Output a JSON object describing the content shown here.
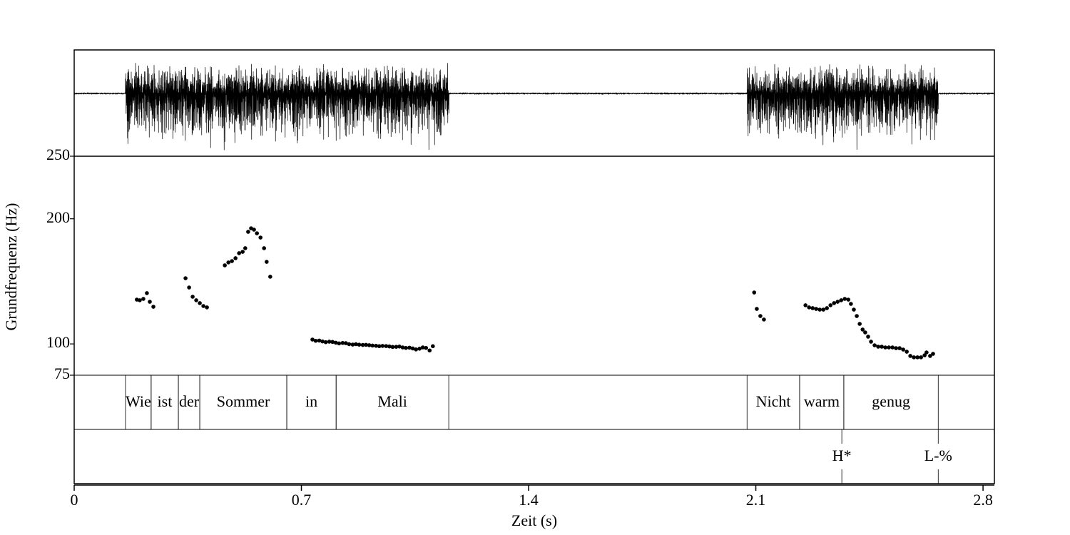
{
  "chart_data": {
    "type": "scatter",
    "x_label": "Zeit (s)",
    "y_label": "Grundfrequenz (Hz)",
    "xlim": [
      0,
      2.835
    ],
    "xticks": [
      0,
      0.7,
      1.4,
      2.1,
      2.8
    ],
    "ylim": [
      75,
      250
    ],
    "yticks": [
      75,
      100,
      200,
      250
    ],
    "color": "#000000",
    "x": [
      0.193,
      0.202,
      0.213,
      0.224,
      0.233,
      0.244,
      0.343,
      0.354,
      0.365,
      0.376,
      0.387,
      0.398,
      0.409,
      0.464,
      0.475,
      0.486,
      0.497,
      0.508,
      0.519,
      0.527,
      0.536,
      0.545,
      0.554,
      0.563,
      0.574,
      0.585,
      0.593,
      0.604,
      0.734,
      0.744,
      0.755,
      0.765,
      0.775,
      0.786,
      0.796,
      0.806,
      0.816,
      0.827,
      0.837,
      0.847,
      0.858,
      0.868,
      0.878,
      0.889,
      0.899,
      0.909,
      0.919,
      0.93,
      0.94,
      0.95,
      0.961,
      0.971,
      0.981,
      0.992,
      1.002,
      1.012,
      1.022,
      1.033,
      1.043,
      1.053,
      1.064,
      1.074,
      1.084,
      1.095,
      1.105,
      2.095,
      2.103,
      2.114,
      2.125,
      2.253,
      2.264,
      2.275,
      2.286,
      2.297,
      2.308,
      2.319,
      2.33,
      2.341,
      2.352,
      2.363,
      2.374,
      2.385,
      2.393,
      2.402,
      2.411,
      2.42,
      2.429,
      2.437,
      2.446,
      2.455,
      2.466,
      2.477,
      2.488,
      2.499,
      2.51,
      2.521,
      2.532,
      2.543,
      2.554,
      2.565,
      2.576,
      2.587,
      2.598,
      2.609,
      2.62,
      2.626,
      2.637,
      2.646
    ],
    "values": [
      135.4,
      134.9,
      136.0,
      140.6,
      133.7,
      129.7,
      152.5,
      145.1,
      137.7,
      134.9,
      132.6,
      130.3,
      129.2,
      162.8,
      165.1,
      166.2,
      168.5,
      172.5,
      173.6,
      176.5,
      189.6,
      192.4,
      191.3,
      188.4,
      185.0,
      176.5,
      165.6,
      153.7,
      103.5,
      102.5,
      102.7,
      102.0,
      101.4,
      101.8,
      101.6,
      101.0,
      100.4,
      100.8,
      100.6,
      99.8,
      99.5,
      99.8,
      99.4,
      99.2,
      99.3,
      99.0,
      98.7,
      98.5,
      98.2,
      98.4,
      98.3,
      98.0,
      97.6,
      97.7,
      97.9,
      97.2,
      96.8,
      97.0,
      96.4,
      95.6,
      96.2,
      97.2,
      96.8,
      94.8,
      98.2,
      141.1,
      128.0,
      122.3,
      119.5,
      130.9,
      129.2,
      128.6,
      128.0,
      127.4,
      127.4,
      128.6,
      130.9,
      132.6,
      133.7,
      134.9,
      136.0,
      135.4,
      132.0,
      127.4,
      122.3,
      116.0,
      111.5,
      109.2,
      105.8,
      101.8,
      98.9,
      97.8,
      97.8,
      97.2,
      97.2,
      97.2,
      96.6,
      96.6,
      95.5,
      93.8,
      90.4,
      89.3,
      89.3,
      89.3,
      90.9,
      93.2,
      90.4,
      92.1
    ],
    "words": [
      {
        "start": 0.158,
        "end": 0.237,
        "label": "Wie"
      },
      {
        "start": 0.237,
        "end": 0.321,
        "label": "ist"
      },
      {
        "start": 0.321,
        "end": 0.387,
        "label": "der"
      },
      {
        "start": 0.387,
        "end": 0.655,
        "label": "Sommer"
      },
      {
        "start": 0.655,
        "end": 0.807,
        "label": "in"
      },
      {
        "start": 0.807,
        "end": 1.154,
        "label": "Mali"
      },
      {
        "start": 2.073,
        "end": 2.235,
        "label": "Nicht"
      },
      {
        "start": 2.235,
        "end": 2.371,
        "label": "warm"
      },
      {
        "start": 2.371,
        "end": 2.662,
        "label": "genug"
      }
    ],
    "tones": [
      {
        "time": 2.365,
        "label": "H*"
      },
      {
        "time": 2.662,
        "label": "L-%"
      }
    ]
  }
}
